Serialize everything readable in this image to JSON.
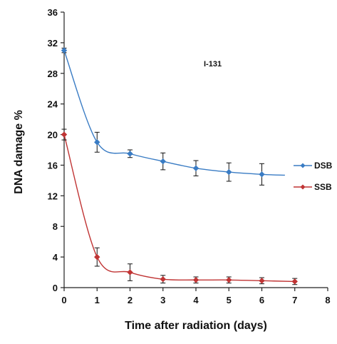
{
  "chart_data": {
    "type": "line",
    "title": "",
    "annotation": "I-131",
    "xlabel": "Time after radiation (days)",
    "ylabel": "DNA damage  %",
    "xlim": [
      0,
      8
    ],
    "ylim": [
      0,
      36
    ],
    "x_ticks": [
      "0",
      "1",
      "2",
      "3",
      "4",
      "5",
      "6",
      "7",
      "8"
    ],
    "y_ticks": [
      "0",
      "4",
      "8",
      "12",
      "16",
      "20",
      "24",
      "28",
      "32",
      "36"
    ],
    "grid": false,
    "legend_position": "right",
    "x": [
      0,
      1,
      2,
      3,
      4,
      5,
      6,
      7
    ],
    "series": [
      {
        "name": "DSB",
        "color": "#3a7cc4",
        "marker": "diamond",
        "values": [
          31.0,
          19.0,
          17.5,
          16.5,
          15.6,
          15.1,
          14.8,
          null
        ],
        "errors": [
          0.3,
          1.3,
          0.5,
          1.1,
          1.0,
          1.2,
          1.4,
          null
        ],
        "curve_end_x": 6.7
      },
      {
        "name": "SSB",
        "color": "#c03434",
        "marker": "diamond",
        "values": [
          20.0,
          4.0,
          2.0,
          1.1,
          1.0,
          1.0,
          0.9,
          0.8
        ],
        "errors": [
          0.7,
          1.2,
          1.1,
          0.5,
          0.4,
          0.4,
          0.4,
          0.4
        ],
        "curve_end_x": 7.0
      }
    ]
  }
}
